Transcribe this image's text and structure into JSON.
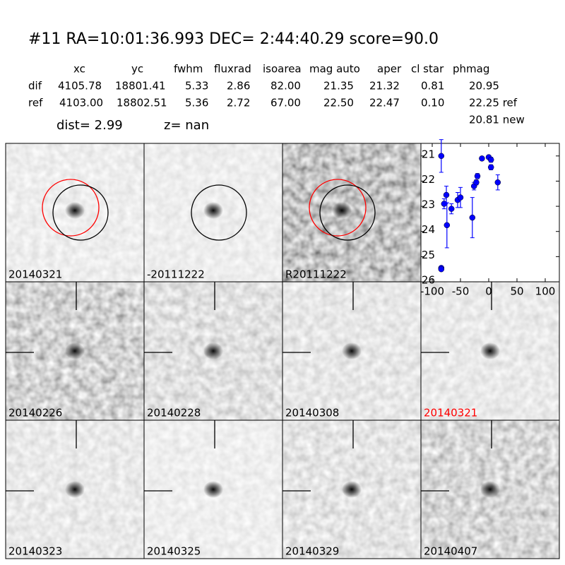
{
  "header": {
    "title": "#11   RA=10:01:36.993 DEC= 2:44:40.29      score=90.0"
  },
  "table": {
    "columns": [
      "xc",
      "yc",
      "fwhm",
      "fluxrad",
      "isoarea",
      "mag auto",
      "aper",
      "cl star",
      "phmag"
    ],
    "rows": [
      {
        "label": "dif",
        "cells": [
          "4105.78",
          "18801.41",
          "5.33",
          "2.86",
          "82.00",
          "21.35",
          "21.32",
          "0.81",
          "20.95"
        ]
      },
      {
        "label": "ref",
        "cells": [
          "4103.00",
          "18802.51",
          "5.36",
          "2.72",
          "67.00",
          "22.50",
          "22.47",
          "0.10",
          "22.25 ref"
        ]
      }
    ],
    "extra": "20.81 new"
  },
  "summary": {
    "dist": "dist=  2.99",
    "z": "z=   nan"
  },
  "stamps": [
    {
      "label": "20140321",
      "color": "#000000"
    },
    {
      "label": "-20111222",
      "color": "#000000"
    },
    {
      "label": "R20111222",
      "color": "#000000"
    },
    {
      "label": "20140226",
      "color": "#000000"
    },
    {
      "label": "20140228",
      "color": "#000000"
    },
    {
      "label": "20140308",
      "color": "#000000"
    },
    {
      "label": "20140321",
      "color": "#ff0000"
    },
    {
      "label": "20140323",
      "color": "#000000"
    },
    {
      "label": "20140325",
      "color": "#000000"
    },
    {
      "label": "20140329",
      "color": "#000000"
    },
    {
      "label": "20140407",
      "color": "#000000"
    }
  ],
  "chart_data": {
    "type": "errorbar",
    "xlim": [
      -120,
      125
    ],
    "ylim": [
      26,
      20.5
    ],
    "xticks": [
      -100,
      -50,
      0,
      50,
      100
    ],
    "yticks": [
      21,
      22,
      23,
      24,
      25,
      26
    ],
    "series": [
      {
        "color": "#0000ff",
        "x": [
          -84,
          -84,
          -84,
          -79,
          -75,
          -74,
          -66,
          -55,
          -50,
          -29,
          -26,
          -22,
          -20,
          -12,
          0,
          4,
          4,
          16
        ],
        "values": [
          21.0,
          25.45,
          25.5,
          22.9,
          22.55,
          23.75,
          23.1,
          22.75,
          22.65,
          23.45,
          22.2,
          22.05,
          21.8,
          21.1,
          21.05,
          21.15,
          21.45,
          22.05
        ],
        "errors": [
          0.65,
          0.05,
          0.05,
          0.2,
          0.35,
          0.9,
          0.2,
          0.3,
          0.4,
          0.8,
          0.15,
          0.1,
          0.1,
          0.05,
          0.05,
          0.1,
          0.1,
          0.3
        ]
      }
    ]
  }
}
